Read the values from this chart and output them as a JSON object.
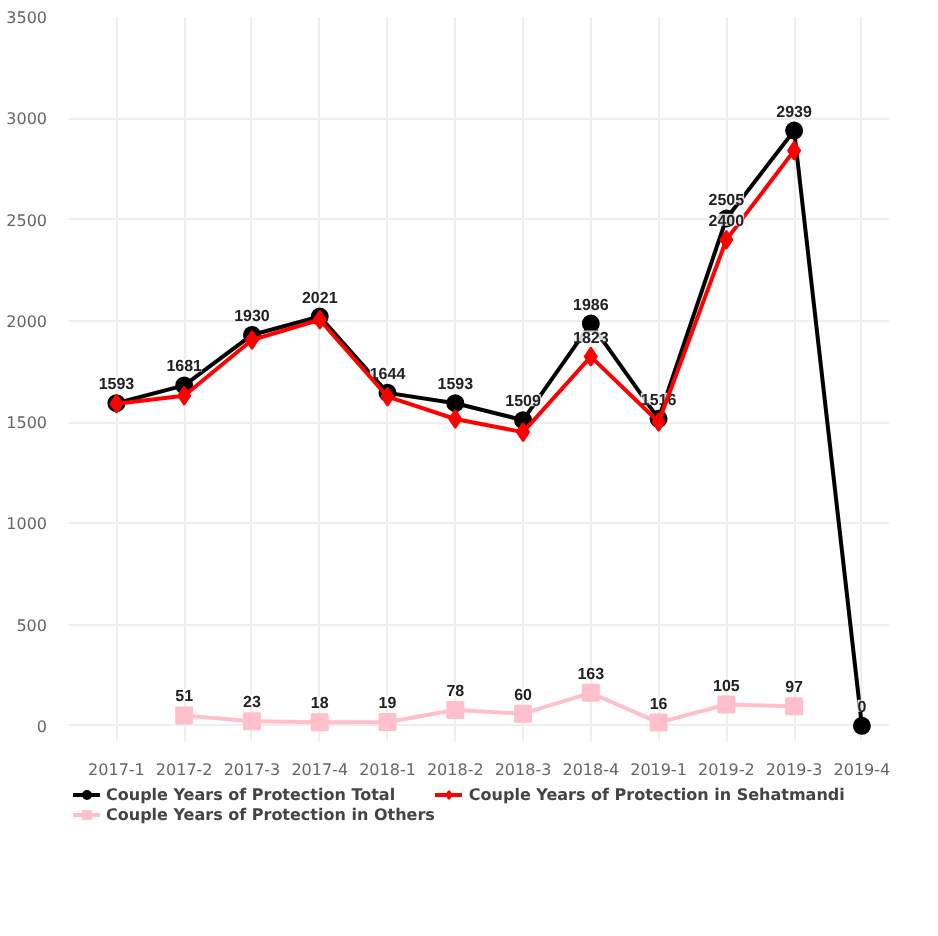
{
  "chart_data": {
    "type": "line",
    "categories": [
      "2017-1",
      "2017-2",
      "2017-3",
      "2017-4",
      "2018-1",
      "2018-2",
      "2018-3",
      "2018-4",
      "2019-1",
      "2019-2",
      "2019-3",
      "2019-4"
    ],
    "series": [
      {
        "name": "Couple Years of Protection Total",
        "color": "#000000",
        "marker": "circle",
        "values": [
          1593,
          1681,
          1930,
          2021,
          1644,
          1593,
          1509,
          1986,
          1516,
          2505,
          2939,
          0
        ],
        "value_labels": [
          "1593",
          "1681",
          "1930",
          "2021",
          "1644",
          "1593",
          "1509",
          "1986",
          "1516",
          "2505",
          "2939",
          "0"
        ]
      },
      {
        "name": "Couple Years of Protection in Sehatmandi",
        "color": "#ff0000",
        "marker": "diamond",
        "values": [
          1590,
          1630,
          1905,
          2005,
          1625,
          1515,
          1450,
          1823,
          1500,
          2400,
          2840,
          null
        ],
        "value_labels": [
          null,
          null,
          null,
          null,
          null,
          null,
          null,
          "1823",
          null,
          "2400",
          null,
          null
        ]
      },
      {
        "name": "Couple Years of Protection in Others",
        "color": "#ffc0cb",
        "marker": "square",
        "values": [
          null,
          51,
          23,
          18,
          19,
          78,
          60,
          163,
          16,
          105,
          97,
          null
        ],
        "value_labels": [
          null,
          "51",
          "23",
          "18",
          "19",
          "78",
          "60",
          "163",
          "16",
          "105",
          "97",
          null
        ]
      }
    ],
    "ylim": [
      -75,
      3500
    ],
    "yticks": [
      0,
      500,
      1000,
      1500,
      2000,
      2500,
      3000,
      3500
    ],
    "grid": true,
    "legend": "bottom"
  }
}
